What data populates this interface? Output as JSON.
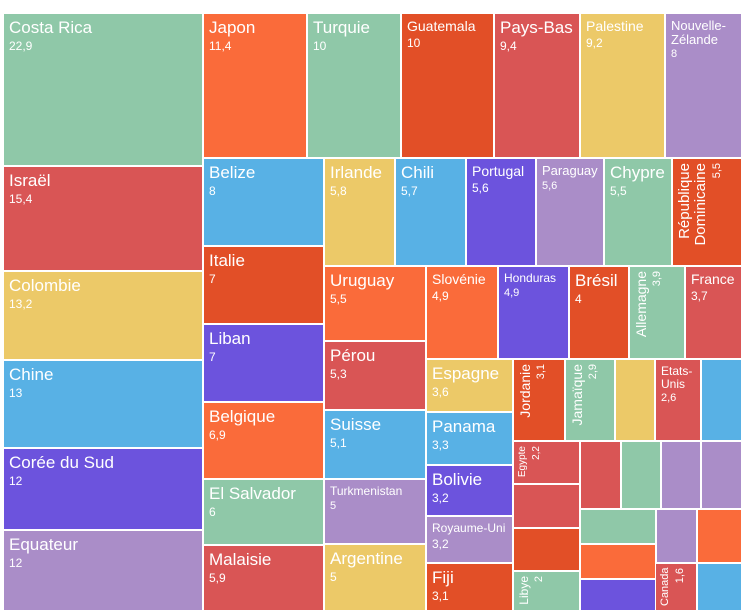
{
  "chart_data": {
    "type": "treemap",
    "colors": {
      "green": "#8fc8a8",
      "orange": "#fa6b3a",
      "red": "#d95555",
      "darkorange": "#e24f27",
      "yellow": "#ecc968",
      "purple": "#aa8dc8",
      "blue": "#58b1e5",
      "violet": "#6c53dd"
    },
    "items": [
      {
        "label": "Costa Rica",
        "value": "22,9",
        "color": "green"
      },
      {
        "label": "Japon",
        "value": "11,4",
        "color": "orange"
      },
      {
        "label": "Turquie",
        "value": "10",
        "color": "green"
      },
      {
        "label": "Guatemala",
        "value": "10",
        "color": "darkorange"
      },
      {
        "label": "Pays-Bas",
        "value": "9,4",
        "color": "red"
      },
      {
        "label": "Palestine",
        "value": "9,2",
        "color": "yellow"
      },
      {
        "label": "Nouvelle-Zélande",
        "value": "8",
        "color": "purple"
      },
      {
        "label": "Israël",
        "value": "15,4",
        "color": "red"
      },
      {
        "label": "Belize",
        "value": "8",
        "color": "blue"
      },
      {
        "label": "Irlande",
        "value": "5,8",
        "color": "yellow"
      },
      {
        "label": "Chili",
        "value": "5,7",
        "color": "blue"
      },
      {
        "label": "Portugal",
        "value": "5,6",
        "color": "violet"
      },
      {
        "label": "Paraguay",
        "value": "5,6",
        "color": "purple"
      },
      {
        "label": "Chypre",
        "value": "5,5",
        "color": "green"
      },
      {
        "label": "République Dominicaine",
        "value": "5,5",
        "color": "darkorange"
      },
      {
        "label": "Colombie",
        "value": "13,2",
        "color": "yellow"
      },
      {
        "label": "Italie",
        "value": "7",
        "color": "darkorange"
      },
      {
        "label": "Uruguay",
        "value": "5,5",
        "color": "orange"
      },
      {
        "label": "Slovénie",
        "value": "4,9",
        "color": "orange"
      },
      {
        "label": "Honduras",
        "value": "4,9",
        "color": "violet"
      },
      {
        "label": "Brésil",
        "value": "4",
        "color": "darkorange"
      },
      {
        "label": "Allemagne",
        "value": "3,9",
        "color": "green"
      },
      {
        "label": "France",
        "value": "3,7",
        "color": "red"
      },
      {
        "label": "Chine",
        "value": "13",
        "color": "blue"
      },
      {
        "label": "Liban",
        "value": "7",
        "color": "violet"
      },
      {
        "label": "Pérou",
        "value": "5,3",
        "color": "red"
      },
      {
        "label": "Espagne",
        "value": "3,6",
        "color": "yellow"
      },
      {
        "label": "Jordanie",
        "value": "3,1",
        "color": "darkorange"
      },
      {
        "label": "Jamaïque",
        "value": "2,9",
        "color": "green"
      },
      {
        "label": "Etats-Unis",
        "value": "2,6",
        "color": "red"
      },
      {
        "label": "Corée du Sud",
        "value": "12",
        "color": "violet"
      },
      {
        "label": "Belgique",
        "value": "6,9",
        "color": "orange"
      },
      {
        "label": "Suisse",
        "value": "5,1",
        "color": "blue"
      },
      {
        "label": "Panama",
        "value": "3,3",
        "color": "blue"
      },
      {
        "label": "Egypte",
        "value": "2,2",
        "color": "red"
      },
      {
        "label": "Equateur",
        "value": "12",
        "color": "purple"
      },
      {
        "label": "El Salvador",
        "value": "6",
        "color": "green"
      },
      {
        "label": "Turkmenistan",
        "value": "5",
        "color": "purple"
      },
      {
        "label": "Bolivie",
        "value": "3,2",
        "color": "violet"
      },
      {
        "label": "Royaume-Uni",
        "value": "3,2",
        "color": "purple"
      },
      {
        "label": "Malaisie",
        "value": "5,9",
        "color": "red"
      },
      {
        "label": "Argentine",
        "value": "5",
        "color": "yellow"
      },
      {
        "label": "Fiji",
        "value": "3,1",
        "color": "darkorange"
      },
      {
        "label": "Libye",
        "value": "2",
        "color": "green"
      },
      {
        "label": "Canada",
        "value": "1,6",
        "color": "red"
      }
    ],
    "unlabeled_colors": [
      "yellow",
      "blue",
      "red",
      "green",
      "purple",
      "purple",
      "red",
      "green",
      "purple",
      "orange",
      "darkorange",
      "orange",
      "violet",
      "blue",
      "blue",
      "orange",
      "yellow",
      "yellow",
      "violet",
      "orange",
      "red",
      "darkorange",
      "yellow"
    ]
  }
}
